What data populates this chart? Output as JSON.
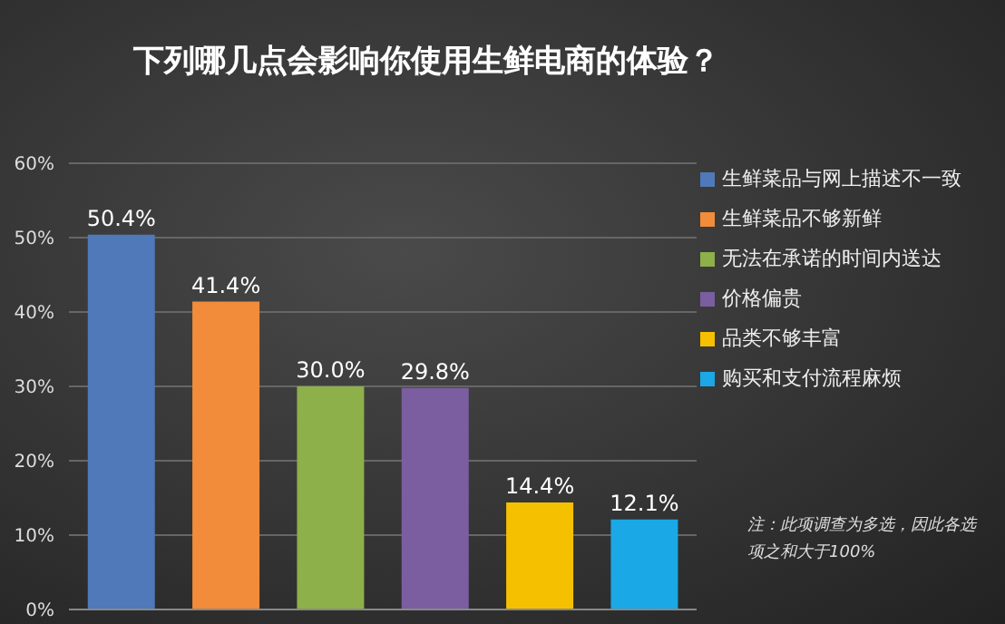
{
  "chart_data": {
    "type": "bar",
    "title": "下列哪几点会影响你使用生鲜电商的体验？",
    "categories": [
      null,
      null,
      null,
      null,
      null,
      null
    ],
    "stacked": true,
    "series": [
      {
        "name": "生鲜菜品与网上描述不一致",
        "color": "#4f79b8",
        "values": [
          50.4,
          null,
          null,
          null,
          null,
          null
        ],
        "value_labels": [
          "50.4%",
          null,
          null,
          null,
          null,
          null
        ]
      },
      {
        "name": "生鲜菜品不够新鲜",
        "color": "#f28c3a",
        "values": [
          null,
          41.4,
          null,
          null,
          null,
          null
        ],
        "value_labels": [
          null,
          "41.4%",
          null,
          null,
          null,
          null
        ]
      },
      {
        "name": "无法在承诺的时间内送达",
        "color": "#8db04a",
        "values": [
          null,
          null,
          30.0,
          null,
          null,
          null
        ],
        "value_labels": [
          null,
          null,
          "30.0%",
          null,
          null,
          null
        ]
      },
      {
        "name": "价格偏贵",
        "color": "#7a5ea0",
        "values": [
          null,
          null,
          null,
          29.8,
          null,
          null
        ],
        "value_labels": [
          null,
          null,
          null,
          "29.8%",
          null,
          null
        ]
      },
      {
        "name": "品类不够丰富",
        "color": "#f5c000",
        "values": [
          null,
          null,
          null,
          null,
          14.4,
          null
        ],
        "value_labels": [
          null,
          null,
          null,
          null,
          "14.4%",
          null
        ]
      },
      {
        "name": "购买和支付流程麻烦",
        "color": "#1aa8e6",
        "values": [
          null,
          null,
          null,
          null,
          null,
          12.1
        ],
        "value_labels": [
          null,
          null,
          null,
          null,
          null,
          "12.1%"
        ]
      }
    ],
    "ylim": [
      0,
      60
    ],
    "yticks": [
      {
        "value": 0,
        "label": "0%"
      },
      {
        "value": 10,
        "label": "10%"
      },
      {
        "value": 20,
        "label": "20%"
      },
      {
        "value": 30,
        "label": "30%"
      },
      {
        "value": 40,
        "label": "40%"
      },
      {
        "value": 50,
        "label": "50%"
      },
      {
        "value": 60,
        "label": "60%"
      }
    ],
    "grid": "y",
    "legend": "right",
    "tick_labels": "y",
    "annotations": [
      "注：此项调查为多选，因此各选项之和大于100%"
    ]
  }
}
